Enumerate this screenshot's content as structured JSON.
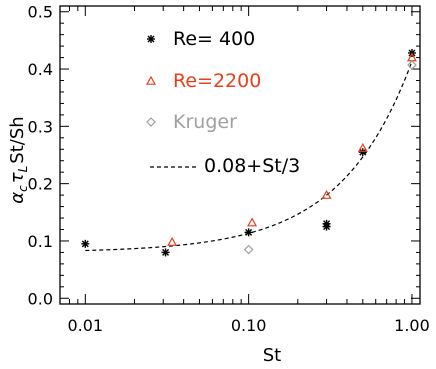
{
  "chart_data": {
    "type": "scatter",
    "xlabel": "St",
    "ylabel": "α",
    "ylabel_sub1": "c",
    "ylabel_mid": "τ",
    "ylabel_sub2": "L",
    "ylabel_tail": "St/Sh",
    "x_scale": "log",
    "xlim": [
      0.007,
      1.12
    ],
    "ylim": [
      -0.01,
      0.51
    ],
    "x_ticks": [
      0.01,
      0.1,
      1.0
    ],
    "x_tick_labels": [
      "0.01",
      "0.10",
      "1.00"
    ],
    "y_ticks": [
      0.0,
      0.1,
      0.2,
      0.3,
      0.4,
      0.5
    ],
    "y_tick_labels": [
      "0.0",
      "0.1",
      "0.2",
      "0.3",
      "0.4",
      "0.5"
    ],
    "grid": false,
    "legend_position": "top-left",
    "series": [
      {
        "name": "Re= 400",
        "marker": "asterisk",
        "color": "#000000",
        "points": [
          {
            "x": 0.01,
            "y": 0.095
          },
          {
            "x": 0.031,
            "y": 0.08
          },
          {
            "x": 0.1,
            "y": 0.115
          },
          {
            "x": 0.3,
            "y": 0.13
          },
          {
            "x": 0.3,
            "y": 0.125
          },
          {
            "x": 0.5,
            "y": 0.255
          },
          {
            "x": 1.0,
            "y": 0.428
          }
        ]
      },
      {
        "name": "Re=2200",
        "marker": "triangle",
        "color": "#e8401a",
        "points": [
          {
            "x": 0.034,
            "y": 0.098
          },
          {
            "x": 0.105,
            "y": 0.132
          },
          {
            "x": 0.3,
            "y": 0.18
          },
          {
            "x": 0.5,
            "y": 0.262
          },
          {
            "x": 1.0,
            "y": 0.42
          }
        ]
      },
      {
        "name": "Kruger",
        "marker": "diamond",
        "color": "#a0a0a0",
        "points": [
          {
            "x": 0.1,
            "y": 0.085
          },
          {
            "x": 1.0,
            "y": 0.407
          }
        ]
      },
      {
        "name": "0.08+St/3",
        "type": "line",
        "style": "dashed",
        "color": "#000000",
        "function": {
          "intercept": 0.08,
          "slope": 0.3333
        },
        "x_range": [
          0.01,
          1.0
        ]
      }
    ]
  }
}
